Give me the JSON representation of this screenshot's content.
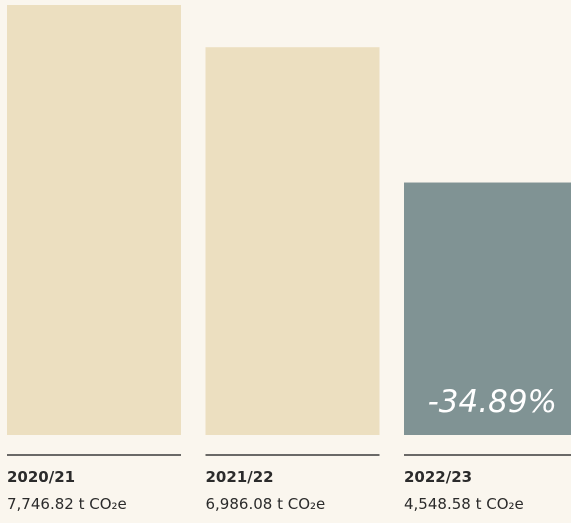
{
  "chart_data": {
    "type": "bar",
    "categories": [
      "2020/21",
      "2021/22",
      "2022/23"
    ],
    "values": [
      7746.82,
      6986.08,
      4548.58
    ],
    "value_labels": [
      "7,746.82 t CO₂e",
      "6,986.08 t CO₂e",
      "4,548.58 t CO₂e"
    ],
    "colors": [
      "#ecdfc0",
      "#ecdfc0",
      "#809394"
    ],
    "annotation": "-34.89%"
  }
}
